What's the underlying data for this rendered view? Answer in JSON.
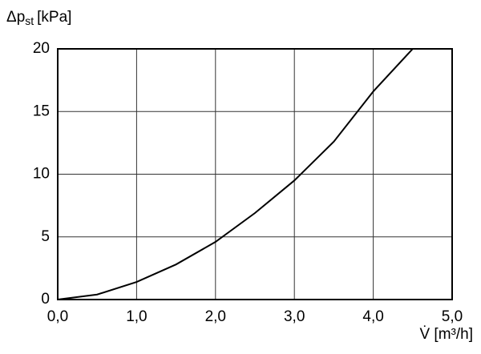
{
  "chart_data": {
    "type": "line",
    "y_label": {
      "symbol": "Δp",
      "subscript": "st",
      "unit": "[kPa]"
    },
    "x_label": "V̇ [m³/h]",
    "x": [
      0,
      0.5,
      1,
      1.5,
      2,
      2.5,
      3,
      3.5,
      4,
      4.5
    ],
    "series": [
      {
        "color": "#000000",
        "values": [
          0,
          0.4,
          1.4,
          2.8,
          4.6,
          6.9,
          9.5,
          12.6,
          16.6,
          20
        ]
      }
    ],
    "xlim": [
      0,
      5
    ],
    "ylim": [
      0,
      20
    ],
    "xticks": [
      {
        "value": 0,
        "label": "0,0"
      },
      {
        "value": 1,
        "label": "1,0"
      },
      {
        "value": 2,
        "label": "2,0"
      },
      {
        "value": 3,
        "label": "3,0"
      },
      {
        "value": 4,
        "label": "4,0"
      },
      {
        "value": 5,
        "label": "5,0"
      }
    ],
    "yticks": [
      0,
      5,
      10,
      15,
      20
    ],
    "grid": true
  }
}
